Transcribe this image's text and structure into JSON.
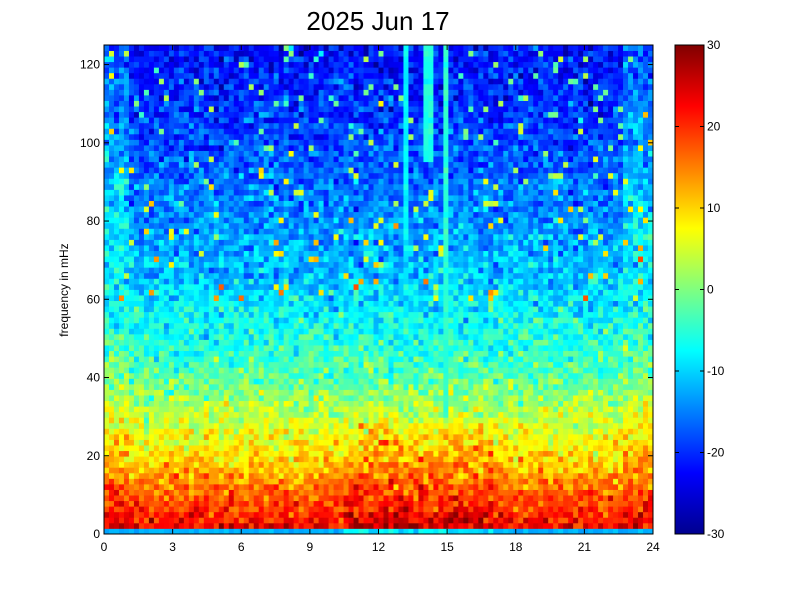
{
  "chart_data": {
    "type": "heatmap",
    "title": "2025 Jun 17",
    "xlabel": "",
    "ylabel": "frequency in mHz",
    "xlim": [
      0,
      24
    ],
    "ylim": [
      0,
      125
    ],
    "x_ticks": [
      0,
      3,
      6,
      9,
      12,
      15,
      18,
      21,
      24
    ],
    "y_ticks": [
      0,
      20,
      40,
      60,
      80,
      100,
      120
    ],
    "colorbar": {
      "colormap": "jet",
      "clim": [
        -30,
        30
      ],
      "ticks": [
        -30,
        -20,
        -10,
        0,
        10,
        20,
        30
      ]
    },
    "grid": false,
    "grid_resolution": {
      "x_bins": 110,
      "y_bins": 88
    },
    "level_profile": [
      {
        "freq_mHz": 0,
        "value": 25
      },
      {
        "freq_mHz": 3,
        "value": 22
      },
      {
        "freq_mHz": 6,
        "value": 20
      },
      {
        "freq_mHz": 10,
        "value": 17
      },
      {
        "freq_mHz": 20,
        "value": 9
      },
      {
        "freq_mHz": 30,
        "value": 4
      },
      {
        "freq_mHz": 40,
        "value": -2
      },
      {
        "freq_mHz": 50,
        "value": -6
      },
      {
        "freq_mHz": 60,
        "value": -9
      },
      {
        "freq_mHz": 70,
        "value": -12
      },
      {
        "freq_mHz": 80,
        "value": -14
      },
      {
        "freq_mHz": 90,
        "value": -16
      },
      {
        "freq_mHz": 100,
        "value": -18
      },
      {
        "freq_mHz": 110,
        "value": -20
      },
      {
        "freq_mHz": 125,
        "value": -22
      }
    ],
    "features": [
      {
        "type": "band",
        "freq_mHz": [
          0,
          2
        ],
        "value": -12,
        "label": "dark cyan strip at bottom"
      },
      {
        "type": "hot_region",
        "hours": [
          10.5,
          17
        ],
        "freq_mHz": [
          0,
          28
        ],
        "boost": 6
      },
      {
        "type": "vertical_line",
        "hour": 13.2,
        "freq_mHz": [
          70,
          125
        ],
        "value": -8
      },
      {
        "type": "vertical_line",
        "hour": 14.2,
        "freq_mHz": [
          95,
          125
        ],
        "value": -6
      },
      {
        "type": "vertical_line",
        "hour": 15.0,
        "freq_mHz": [
          30,
          125
        ],
        "value": -5
      }
    ]
  }
}
